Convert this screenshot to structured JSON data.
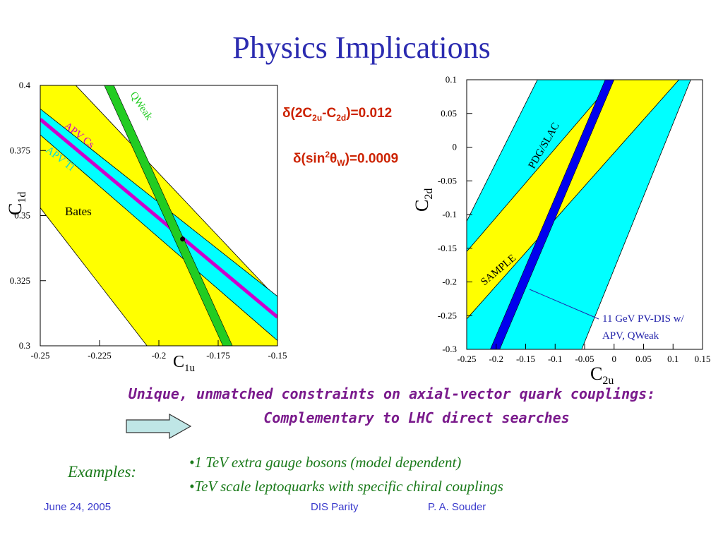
{
  "title": "Physics Implications",
  "chart_data": [
    {
      "type": "area",
      "xlabel": "C",
      "xlabel_sub": "1u",
      "ylabel": "C",
      "ylabel_sub": "1d",
      "xlim": [
        -0.25,
        -0.15
      ],
      "ylim": [
        0.3,
        0.4
      ],
      "xticks": [
        "-0.25",
        "-0.225",
        "-0.2",
        "-0.175",
        "-0.15"
      ],
      "yticks": [
        "0.3",
        "0.325",
        "0.35",
        "0.375",
        "0.4"
      ],
      "band_labels": [
        "Bates",
        "APV Cs",
        "APV Tl",
        "QWeak"
      ],
      "point": [
        -0.19,
        0.341
      ],
      "colors": {
        "bates": "#ffff00",
        "apv": "#00ffff",
        "cs": "#cc00cc",
        "qweak": "#22cc22",
        "point": "#000000"
      }
    },
    {
      "type": "area",
      "xlabel": "C",
      "xlabel_sub": "2u",
      "ylabel": "C",
      "ylabel_sub": "2d",
      "xlim": [
        -0.25,
        0.15
      ],
      "ylim": [
        -0.3,
        0.1
      ],
      "xticks": [
        "-0.25",
        "-0.2",
        "-0.15",
        "-0.1",
        "-0.05",
        "0",
        "0.05",
        "0.1",
        "0.15"
      ],
      "yticks": [
        "-0.3",
        "-0.25",
        "-0.2",
        "-0.15",
        "-0.1",
        "-0.05",
        "0",
        "0.05",
        "0.1"
      ],
      "band_labels": [
        "PDG/SLAC",
        "SAMPLE"
      ],
      "annotation_line1": "11 GeV PV-DIS w/",
      "annotation_line2": "APV, QWeak",
      "colors": {
        "pdg": "#00ffff",
        "sample": "#ffff00",
        "pvdis": "#0000ee",
        "annotation": "#2222aa"
      }
    }
  ],
  "formula1": {
    "pre": "δ(2C",
    "sub1": "2u",
    "mid": "-C",
    "sub2": "2d",
    "post": ")=0.012"
  },
  "formula2": {
    "pre": "δ(sin",
    "sup": "2",
    "theta": "θ",
    "sub": "W",
    "post": ")=0.0009"
  },
  "statement_line1": "Unique, unmatched constraints on axial-vector quark couplings:",
  "statement_line2": "Complementary to LHC direct searches",
  "examples_label": "Examples:",
  "examples": [
    "•1 TeV extra gauge bosons (model dependent)",
    "•TeV scale leptoquarks with specific chiral couplings"
  ],
  "footer": {
    "date": "June 24, 2005",
    "middle": "DIS Parity",
    "author": "P. A. Souder"
  },
  "colors": {
    "title": "#2b2bb0",
    "formula": "#cc2200",
    "statement": "#7a1a8c",
    "examples": "#1a7a1a",
    "footer": "#3a3acc",
    "arrow": "#bfe6e6"
  }
}
